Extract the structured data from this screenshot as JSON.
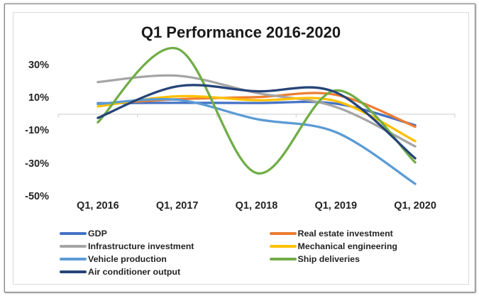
{
  "chart_data": {
    "type": "line",
    "line_style": "smooth",
    "title": "Q1 Performance 2016-2020",
    "categories": [
      "Q1, 2016",
      "Q1, 2017",
      "Q1, 2018",
      "Q1, 2019",
      "Q1, 2020"
    ],
    "series": [
      {
        "name": "GDP",
        "color": "#4472c4",
        "values": [
          6.7,
          6.9,
          6.8,
          6.4,
          -6.8
        ]
      },
      {
        "name": "Real estate investment",
        "color": "#ed7d31",
        "values": [
          6.2,
          9.1,
          10.4,
          11.8,
          -7.7
        ]
      },
      {
        "name": "Infrastructure investment",
        "color": "#a5a5a5",
        "values": [
          19.6,
          23.5,
          13.0,
          4.4,
          -19.7
        ]
      },
      {
        "name": "Mechanical engineering",
        "color": "#ffc000",
        "values": [
          4.7,
          10.9,
          8.5,
          8.0,
          -16.5
        ]
      },
      {
        "name": "Vehicle production",
        "color": "#5b9bd5",
        "values": [
          6.2,
          8.8,
          -3.0,
          -11.0,
          -42.6
        ]
      },
      {
        "name": "Ship deliveries",
        "color": "#70ad47",
        "values": [
          -5.0,
          40.0,
          -36.0,
          14.5,
          -29.5
        ]
      },
      {
        "name": "Air conditioner output",
        "color": "#264478",
        "values": [
          -2.3,
          17.0,
          14.0,
          13.3,
          -27.0
        ]
      }
    ],
    "y_axis": {
      "tick_labels": [
        "30%",
        "10%",
        "-10%",
        "-30%",
        "-50%"
      ],
      "tick_values": [
        30,
        10,
        -10,
        -30,
        -50
      ],
      "min": -50,
      "max": 45,
      "axis_line_at": 0
    },
    "x_axis": {
      "labels": [
        "Q1, 2016",
        "Q1, 2017",
        "Q1, 2018",
        "Q1, 2019",
        "Q1, 2020"
      ]
    },
    "legend": {
      "position": "bottom",
      "columns": 2,
      "entries": [
        "GDP",
        "Real estate investment",
        "Infrastructure investment",
        "Mechanical engineering",
        "Vehicle production",
        "Ship deliveries",
        "Air conditioner output"
      ]
    },
    "grid": false,
    "colors": {
      "axis_line": "#d9d9d9",
      "chart_border": "#d9d9d9",
      "outer_border": "#7f7f7f",
      "text": "#2b2b2b",
      "title_text": "#1f1f1f",
      "background": "#ffffff"
    }
  }
}
